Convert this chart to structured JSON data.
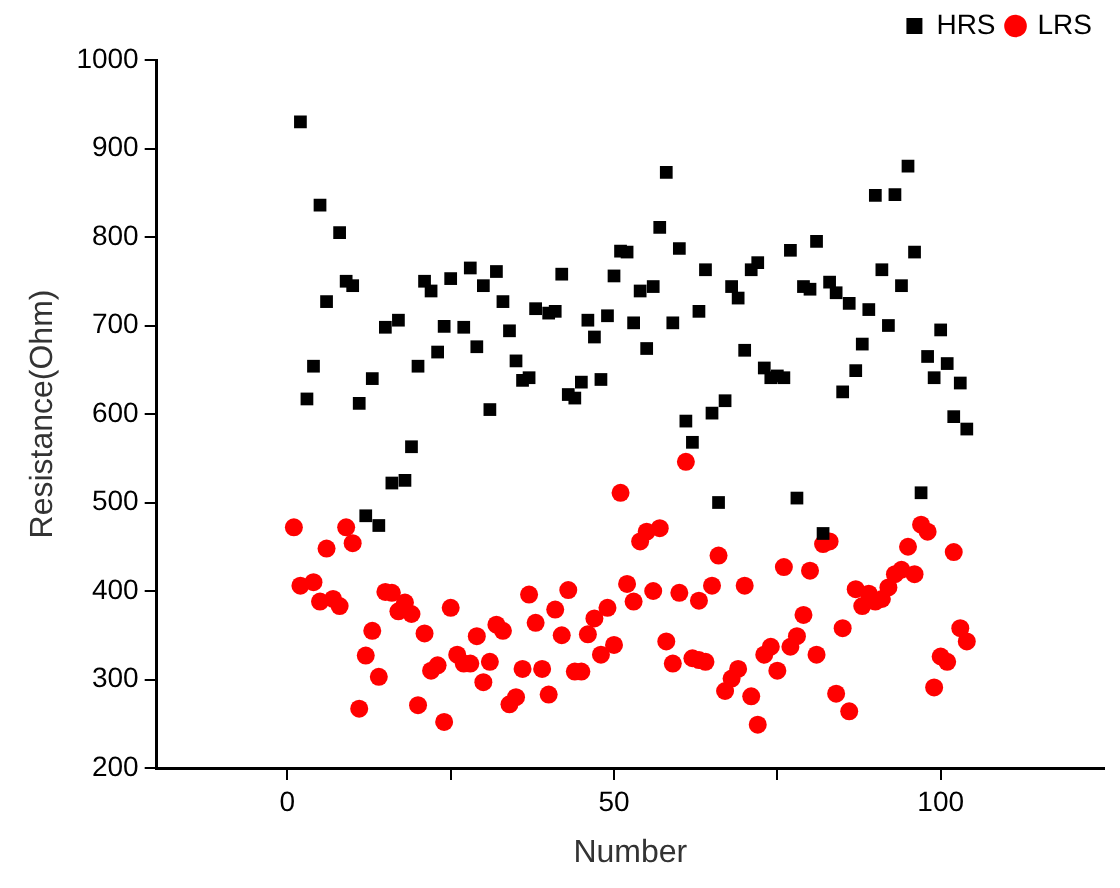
{
  "chart_data": {
    "type": "scatter",
    "xlabel": "Number",
    "ylabel": "Resistance(Ohm)",
    "xlim": [
      -20,
      125
    ],
    "ylim": [
      200,
      1000
    ],
    "xticks": [
      0,
      {
        "value": 25,
        "label": null
      },
      50,
      {
        "value": 75,
        "label": null
      },
      100
    ],
    "yticks": [
      200,
      300,
      400,
      500,
      600,
      700,
      800,
      900,
      1000
    ],
    "grid": false,
    "legend": "top right",
    "series": [
      {
        "name": "HRS",
        "color": "#000000",
        "marker": "square",
        "x": [
          2,
          3,
          4,
          5,
          6,
          8,
          9,
          10,
          11,
          12,
          13,
          14,
          15,
          16,
          17,
          18,
          19,
          20,
          21,
          22,
          23,
          24,
          25,
          27,
          28,
          29,
          30,
          31,
          32,
          33,
          34,
          35,
          36,
          37,
          38,
          40,
          41,
          42,
          43,
          44,
          45,
          46,
          47,
          48,
          49,
          50,
          51,
          52,
          53,
          54,
          55,
          56,
          57,
          58,
          59,
          60,
          61,
          62,
          63,
          64,
          65,
          66,
          67,
          68,
          69,
          70,
          71,
          72,
          73,
          74,
          75,
          76,
          77,
          78,
          79,
          80,
          81,
          82,
          83,
          84,
          85,
          86,
          87,
          88,
          89,
          90,
          91,
          92,
          93,
          94,
          95,
          96,
          97,
          98,
          99,
          100,
          101,
          102,
          103,
          104
        ],
        "values": [
          930,
          617,
          654,
          836,
          727,
          805,
          750,
          745,
          612,
          485,
          640,
          474,
          698,
          522,
          706,
          525,
          563,
          654,
          750,
          739,
          670,
          699,
          753,
          698,
          765,
          676,
          745,
          605,
          761,
          727,
          694,
          660,
          638,
          641,
          719,
          714,
          716,
          758,
          622,
          618,
          636,
          706,
          687,
          639,
          711,
          756,
          784,
          783,
          703,
          739,
          674,
          744,
          811,
          873,
          703,
          787,
          592,
          568,
          716,
          763,
          601,
          500,
          615,
          744,
          731,
          672,
          763,
          771,
          652,
          641,
          643,
          641,
          785,
          505,
          744,
          741,
          795,
          465,
          749,
          737,
          625,
          725,
          649,
          679,
          718,
          847,
          763,
          700,
          848,
          745,
          880,
          783,
          511,
          665,
          641,
          695,
          657,
          597,
          635,
          583
        ]
      },
      {
        "name": "LRS",
        "color": "#ff0000",
        "marker": "circle",
        "x": [
          1,
          2,
          4,
          5,
          6,
          7,
          8,
          9,
          10,
          11,
          12,
          13,
          14,
          15,
          16,
          17,
          18,
          19,
          20,
          21,
          22,
          23,
          24,
          25,
          26,
          27,
          28,
          29,
          30,
          31,
          32,
          33,
          34,
          35,
          36,
          37,
          38,
          39,
          40,
          41,
          42,
          43,
          44,
          45,
          46,
          47,
          48,
          49,
          50,
          51,
          52,
          53,
          54,
          55,
          56,
          57,
          58,
          59,
          60,
          61,
          62,
          63,
          63,
          64,
          65,
          66,
          67,
          68,
          69,
          70,
          71,
          72,
          73,
          74,
          75,
          76,
          77,
          78,
          79,
          80,
          81,
          82,
          83,
          84,
          85,
          86,
          87,
          88,
          89,
          90,
          91,
          92,
          93,
          94,
          95,
          96,
          97,
          98,
          99,
          100,
          101,
          102,
          103,
          104
        ],
        "values": [
          472,
          406,
          410,
          388,
          448,
          391,
          383,
          472,
          454,
          267,
          327,
          355,
          303,
          399,
          398,
          377,
          387,
          374,
          271,
          352,
          310,
          316,
          252,
          381,
          328,
          318,
          318,
          349,
          297,
          320,
          362,
          355,
          272,
          280,
          312,
          396,
          364,
          312,
          283,
          379,
          350,
          401,
          309,
          309,
          351,
          369,
          328,
          381,
          339,
          511,
          408,
          388,
          456,
          467,
          400,
          471,
          343,
          318,
          398,
          546,
          324,
          322,
          389,
          320,
          406,
          440,
          287,
          301,
          312,
          406,
          281,
          249,
          328,
          337,
          310,
          427,
          337,
          349,
          373,
          423,
          328,
          453,
          456,
          284,
          358,
          264,
          402,
          383,
          397,
          388,
          391,
          404,
          419,
          424,
          450,
          419,
          475,
          467,
          291,
          326,
          320,
          444,
          358,
          343
        ]
      }
    ]
  }
}
